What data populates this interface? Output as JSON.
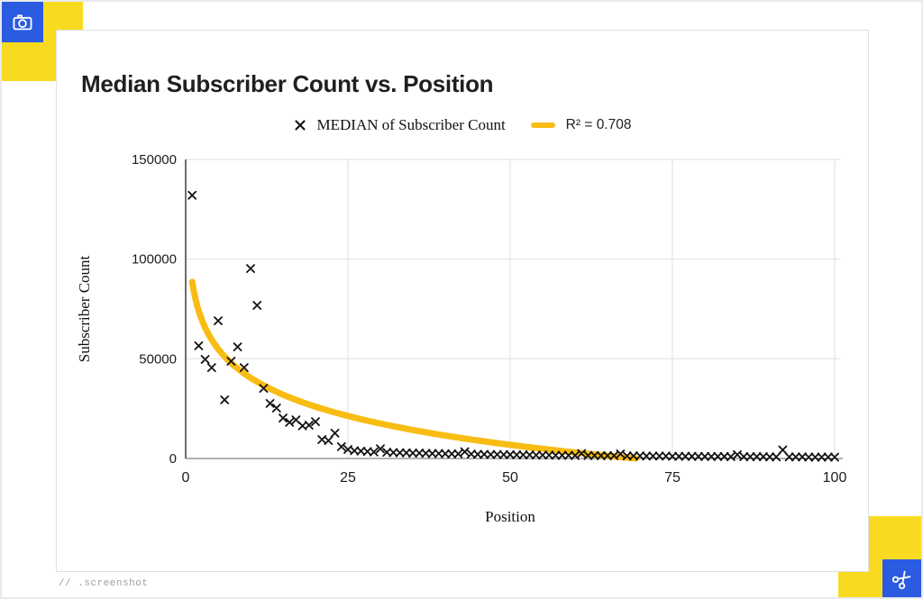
{
  "frame": {
    "footer_label": "// .screenshot",
    "icons": {
      "top_left": "camera-icon",
      "bottom_right": "scissors-icon"
    },
    "colors": {
      "accent_yellow": "#F8DB20",
      "accent_blue": "#2B5BE0",
      "trend_gold": "#F9BC13",
      "card_border": "#e0e0e0"
    }
  },
  "chart_data": {
    "type": "scatter",
    "title": "Median Subscriber Count vs. Position",
    "xlabel": "Position",
    "ylabel": "Subscriber Count",
    "xlim": [
      0,
      100
    ],
    "ylim": [
      0,
      150000
    ],
    "x_ticks": [
      0,
      25,
      50,
      75,
      100
    ],
    "y_ticks": [
      0,
      50000,
      100000,
      150000
    ],
    "grid": true,
    "legend_position": "top",
    "series": [
      {
        "name": "MEDIAN of Subscriber Count",
        "marker": "x",
        "color": "#111111",
        "x": [
          1,
          2,
          3,
          4,
          5,
          6,
          7,
          8,
          9,
          10,
          11,
          12,
          13,
          14,
          15,
          16,
          17,
          18,
          19,
          20,
          21,
          22,
          23,
          24,
          25,
          26,
          27,
          28,
          29,
          30,
          31,
          32,
          33,
          34,
          35,
          36,
          37,
          38,
          39,
          40,
          41,
          42,
          43,
          44,
          45,
          46,
          47,
          48,
          49,
          50,
          51,
          52,
          53,
          54,
          55,
          56,
          57,
          58,
          59,
          60,
          61,
          62,
          63,
          64,
          65,
          66,
          67,
          68,
          69,
          70,
          71,
          72,
          73,
          74,
          75,
          76,
          77,
          78,
          79,
          80,
          81,
          82,
          83,
          84,
          85,
          86,
          87,
          88,
          89,
          90,
          91,
          92,
          93,
          94,
          95,
          96,
          97,
          98,
          99,
          100
        ],
        "y": [
          132000,
          56500,
          49700,
          45600,
          69100,
          29400,
          48800,
          56000,
          45600,
          95300,
          76800,
          35200,
          27600,
          25300,
          20300,
          18100,
          19400,
          16400,
          16700,
          18500,
          9500,
          9000,
          12700,
          5900,
          4500,
          3900,
          3700,
          3500,
          3300,
          4900,
          3100,
          3000,
          2900,
          2800,
          2700,
          2700,
          2600,
          2500,
          2500,
          2400,
          2300,
          2300,
          3400,
          2200,
          2100,
          2100,
          2000,
          2000,
          1900,
          1900,
          1800,
          1800,
          1800,
          1700,
          1700,
          1700,
          1600,
          1600,
          1600,
          1500,
          2500,
          1500,
          1500,
          1400,
          1400,
          1400,
          2300,
          1300,
          1300,
          1300,
          1200,
          1200,
          1200,
          1200,
          1100,
          1100,
          1100,
          1100,
          1000,
          1000,
          1000,
          1000,
          1000,
          900,
          1900,
          900,
          900,
          900,
          900,
          800,
          800,
          4300,
          800,
          800,
          800,
          700,
          700,
          700,
          700,
          700
        ]
      }
    ],
    "trend": {
      "name": "R² = 0.708",
      "type": "logarithmic",
      "equation": "y = a + b*ln(x)",
      "a": 88600,
      "b": -20900,
      "r_squared": 0.708,
      "color": "#F9BC13"
    }
  }
}
